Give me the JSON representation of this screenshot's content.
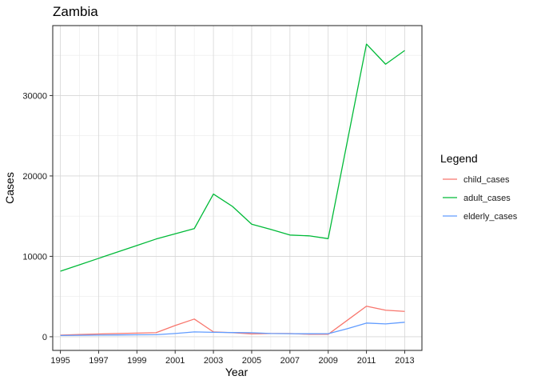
{
  "chart_data": {
    "type": "line",
    "title": "Zambia",
    "xlabel": "Year",
    "ylabel": "Cases",
    "xlim": [
      1994.6,
      2013.9
    ],
    "ylim": [
      -1700,
      38700
    ],
    "x_ticks": [
      1995,
      1997,
      1999,
      2001,
      2003,
      2005,
      2007,
      2009,
      2011,
      2013
    ],
    "y_ticks": [
      0,
      10000,
      20000,
      30000
    ],
    "y_tick_labels": [
      "0",
      "10000",
      "20000",
      "30000"
    ],
    "grid": true,
    "legend": {
      "title": "Legend",
      "position": "right"
    },
    "series": [
      {
        "name": "child_cases",
        "color": "#F8766D",
        "x": [
          1995,
          1996,
          1997,
          1998,
          1999,
          2000,
          2001,
          2002,
          2003,
          2004,
          2005,
          2006,
          2007,
          2008,
          2009,
          2010,
          2011,
          2012,
          2013
        ],
        "y": [
          200,
          270,
          340,
          400,
          450,
          500,
          1400,
          2200,
          600,
          500,
          350,
          400,
          400,
          300,
          300,
          2050,
          3800,
          3300,
          3150
        ]
      },
      {
        "name": "adult_cases",
        "color": "#00BA38",
        "x": [
          1995,
          1996,
          1997,
          1998,
          1999,
          2000,
          2001,
          2002,
          2003,
          2004,
          2005,
          2006,
          2007,
          2008,
          2009,
          2010,
          2011,
          2012,
          2013
        ],
        "y": [
          8150,
          8950,
          9750,
          10550,
          11350,
          12150,
          12800,
          13450,
          17750,
          16200,
          14000,
          13350,
          12650,
          12550,
          12200,
          24300,
          36400,
          33900,
          35600
        ]
      },
      {
        "name": "elderly_cases",
        "color": "#619CFF",
        "x": [
          1995,
          1996,
          1997,
          1998,
          1999,
          2000,
          2001,
          2002,
          2003,
          2004,
          2005,
          2006,
          2007,
          2008,
          2009,
          2010,
          2011,
          2012,
          2013
        ],
        "y": [
          150,
          180,
          200,
          220,
          240,
          250,
          400,
          600,
          550,
          520,
          500,
          400,
          380,
          370,
          380,
          1000,
          1700,
          1600,
          1800
        ]
      }
    ]
  }
}
